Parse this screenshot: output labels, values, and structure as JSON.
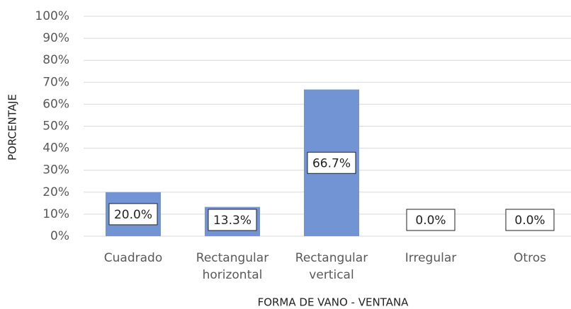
{
  "chart_data": {
    "type": "bar",
    "xlabel": "FORMA DE VANO - VENTANA",
    "ylabel": "PORCENTAJE",
    "categories": [
      "Cuadrado",
      "Rectangular horizontal",
      "Rectangular vertical",
      "Irregular",
      "Otros"
    ],
    "values": [
      20.0,
      13.3,
      66.7,
      0.0,
      0.0
    ],
    "value_labels": [
      "20.0%",
      "13.3%",
      "66.7%",
      "0.0%",
      "0.0%"
    ],
    "color": "#7294d4",
    "ylim": [
      0,
      100
    ],
    "yticks": [
      {
        "value": 0,
        "label": "0%"
      },
      {
        "value": 10,
        "label": "10%"
      },
      {
        "value": 20,
        "label": "20%"
      },
      {
        "value": 30,
        "label": "30%"
      },
      {
        "value": 40,
        "label": "40%"
      },
      {
        "value": 50,
        "label": "50%"
      },
      {
        "value": 60,
        "label": "60%"
      },
      {
        "value": 70,
        "label": "70%"
      },
      {
        "value": 80,
        "label": "80%"
      },
      {
        "value": 90,
        "label": "90%"
      },
      {
        "value": 100,
        "label": "100%"
      }
    ],
    "grid": true
  }
}
